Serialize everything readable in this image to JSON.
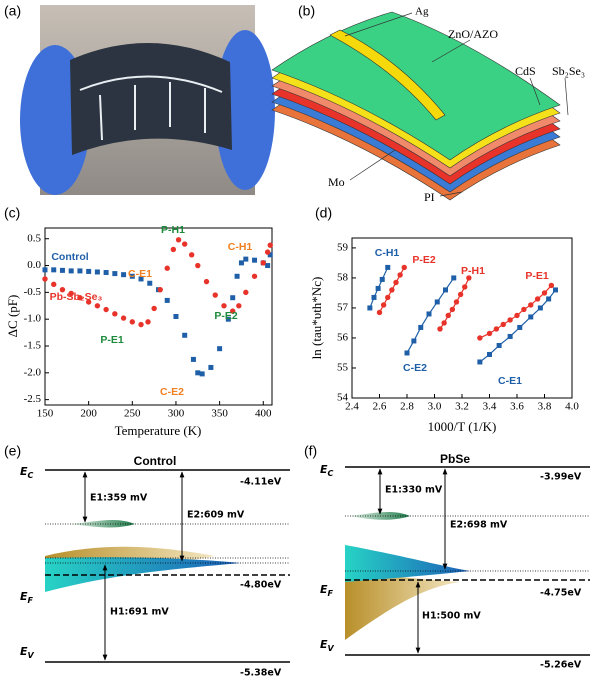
{
  "panel_labels": [
    "(a)",
    "(b)",
    "(c)",
    "(d)",
    "(e)",
    "(f)"
  ],
  "diagram_b": {
    "ag": "Ag",
    "zno": "ZnO/AZO",
    "cds": "CdS",
    "sbse": "Sb₂Se₃",
    "mo": "Mo",
    "pi": "PI"
  },
  "chart_data": [
    {
      "type": "scatter",
      "lines": false,
      "xlabel": "Temperature (K)",
      "ylabel": "ΔC (pF)",
      "xlim": [
        150,
        410
      ],
      "ylim": [
        -2.6,
        0.7
      ],
      "xticks": [
        150,
        200,
        250,
        300,
        350,
        400
      ],
      "yticks": [
        0.5,
        {
          "value": 0,
          "label": "0.0"
        },
        -0.5,
        {
          "value": -1,
          "label": "-1.0"
        },
        -1.5,
        {
          "value": -2,
          "label": "-2.0"
        },
        -2.5
      ],
      "series": [
        {
          "name": "Control",
          "color": "#1f5fa8",
          "marker": "square",
          "x": [
            150,
            160,
            170,
            180,
            190,
            200,
            210,
            220,
            230,
            240,
            250,
            260,
            270,
            280,
            290,
            300,
            310,
            320,
            325,
            330,
            340,
            350,
            360,
            365,
            370,
            375,
            380,
            390,
            400,
            405,
            408
          ],
          "values": [
            -0.08,
            -0.08,
            -0.09,
            -0.1,
            -0.1,
            -0.11,
            -0.12,
            -0.13,
            -0.15,
            -0.17,
            -0.2,
            -0.25,
            -0.33,
            -0.45,
            -0.65,
            -0.95,
            -1.3,
            -1.75,
            -2.0,
            -2.02,
            -1.9,
            -1.55,
            -1.0,
            -0.6,
            -0.2,
            0.05,
            0.12,
            0.1,
            0.05,
            0.0,
            0.2
          ]
        },
        {
          "name": "Pb-Sb₂Se₃",
          "color": "#e8332a",
          "marker": "circle",
          "x": [
            150,
            160,
            170,
            180,
            190,
            200,
            210,
            220,
            230,
            240,
            250,
            260,
            268,
            275,
            282,
            290,
            297,
            303,
            310,
            318,
            325,
            335,
            345,
            355,
            365,
            372,
            380,
            390,
            400,
            405,
            408
          ],
          "values": [
            -0.25,
            -0.35,
            -0.45,
            -0.52,
            -0.6,
            -0.68,
            -0.75,
            -0.82,
            -0.9,
            -0.98,
            -1.05,
            -1.1,
            -1.05,
            -0.8,
            -0.45,
            -0.05,
            0.3,
            0.48,
            0.4,
            0.2,
            0.0,
            -0.3,
            -0.55,
            -0.75,
            -0.85,
            -0.75,
            -0.5,
            -0.2,
            0.05,
            0.25,
            0.38
          ]
        }
      ],
      "annotations": [
        {
          "text": "Control",
          "color": "#1f5fa8"
        },
        {
          "text": "Pb-Sb₂Se₃",
          "color": "#e8332a"
        },
        {
          "text": "C-E1",
          "color": "#f07f1f"
        },
        {
          "text": "P-H1",
          "color": "#1e8a3c"
        },
        {
          "text": "C-H1",
          "color": "#f07f1f"
        },
        {
          "text": "P-E1",
          "color": "#1e8a3c"
        },
        {
          "text": "P-E2",
          "color": "#1e8a3c"
        },
        {
          "text": "C-E2",
          "color": "#f07f1f"
        }
      ]
    },
    {
      "type": "scatter",
      "lines": true,
      "xlabel": "1000/T (1/K)",
      "ylabel": "ln (tau*υth*Nc)",
      "xlim": [
        2.4,
        4.0
      ],
      "ylim": [
        54,
        59.33
      ],
      "xticks": [
        2.4,
        2.6,
        2.8,
        {
          "value": 3,
          "label": "3.0"
        },
        3.2,
        3.4,
        3.6,
        3.8,
        {
          "value": 4,
          "label": "4.0"
        }
      ],
      "yticks": [
        54,
        55,
        56,
        57,
        58,
        59
      ],
      "series": [
        {
          "name": "C-H1",
          "color": "#1f5fa8",
          "marker": "square",
          "x": [
            2.53,
            2.56,
            2.59,
            2.62,
            2.66
          ],
          "values": [
            57.0,
            57.35,
            57.65,
            57.95,
            58.35
          ]
        },
        {
          "name": "P-E2",
          "color": "#e8332a",
          "marker": "circle",
          "x": [
            2.6,
            2.63,
            2.66,
            2.69,
            2.72,
            2.75,
            2.78
          ],
          "values": [
            56.85,
            57.1,
            57.35,
            57.6,
            57.85,
            58.1,
            58.35
          ]
        },
        {
          "name": "C-E2",
          "color": "#1f5fa8",
          "marker": "square",
          "x": [
            2.8,
            2.85,
            2.9,
            2.96,
            3.02,
            3.08,
            3.14
          ],
          "values": [
            55.5,
            55.9,
            56.35,
            56.8,
            57.2,
            57.6,
            58.0
          ]
        },
        {
          "name": "P-H1",
          "color": "#e8332a",
          "marker": "circle",
          "x": [
            3.04,
            3.07,
            3.1,
            3.13,
            3.16,
            3.19,
            3.22,
            3.25
          ],
          "values": [
            56.3,
            56.5,
            56.75,
            56.95,
            57.2,
            57.45,
            57.7,
            58.0
          ]
        },
        {
          "name": "P-E1",
          "color": "#e8332a",
          "marker": "circle",
          "x": [
            3.33,
            3.4,
            3.45,
            3.5,
            3.55,
            3.6,
            3.65,
            3.7,
            3.75,
            3.8,
            3.85
          ],
          "values": [
            56.0,
            56.15,
            56.3,
            56.45,
            56.6,
            56.75,
            56.95,
            57.1,
            57.3,
            57.5,
            57.75
          ]
        },
        {
          "name": "C-E1",
          "color": "#1f5fa8",
          "marker": "square",
          "x": [
            3.33,
            3.4,
            3.47,
            3.55,
            3.62,
            3.7,
            3.77,
            3.83,
            3.88
          ],
          "values": [
            55.2,
            55.45,
            55.75,
            56.05,
            56.35,
            56.7,
            57.0,
            57.3,
            57.6
          ]
        }
      ]
    }
  ],
  "band_diagrams": [
    {
      "title": "Control",
      "ec": {
        "main": "E",
        "sub": "C"
      },
      "ef": {
        "main": "E",
        "sub": "F"
      },
      "ev": {
        "main": "E",
        "sub": "V"
      },
      "ec_energy": "-4.11eV",
      "e1": "E1:359 mV",
      "e2": "E2:609 mV",
      "ef_energy": "-4.80eV",
      "h1": "H1:691 mV",
      "ev_energy": "-5.38eV"
    },
    {
      "title": "PbSe",
      "ec": {
        "main": "E",
        "sub": "C"
      },
      "ef": {
        "main": "E",
        "sub": "F"
      },
      "ev": {
        "main": "E",
        "sub": "V"
      },
      "ec_energy": "-3.99eV",
      "e1": "E1:330 mV",
      "e2": "E2:698 mV",
      "ef_energy": "-4.75eV",
      "h1": "H1:500 mV",
      "ev_energy": "-5.26eV"
    }
  ]
}
